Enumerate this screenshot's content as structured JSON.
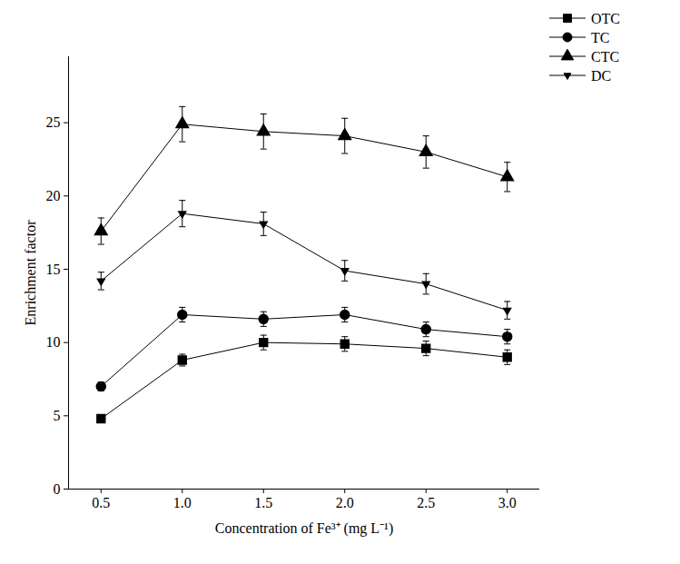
{
  "chart_data": {
    "type": "line",
    "x_label": "Concentration of Fe³⁺ (mg L⁻¹)",
    "y_label": "Enrichment factor",
    "x": [
      0.5,
      1.0,
      1.5,
      2.0,
      2.5,
      3.0
    ],
    "series": [
      {
        "name": "OTC",
        "color": "#000000",
        "marker": "square",
        "line_style": "solid",
        "values": [
          4.8,
          8.8,
          10.0,
          9.9,
          9.6,
          9.0
        ],
        "errors": [
          0.2,
          0.4,
          0.5,
          0.5,
          0.5,
          0.5
        ]
      },
      {
        "name": "TC",
        "color": "#000000",
        "marker": "circle",
        "line_style": "solid",
        "values": [
          7.0,
          11.9,
          11.6,
          11.9,
          10.9,
          10.4
        ],
        "errors": [
          0.3,
          0.5,
          0.5,
          0.5,
          0.5,
          0.5
        ]
      },
      {
        "name": "CTC",
        "color": "#000000",
        "marker": "triangle",
        "line_style": "solid",
        "values": [
          17.6,
          24.9,
          24.4,
          24.1,
          23.0,
          21.3
        ],
        "errors": [
          0.9,
          1.2,
          1.2,
          1.2,
          1.1,
          1.0
        ]
      },
      {
        "name": "DC",
        "color": "#000000",
        "marker": "triangle-down",
        "line_style": "solid",
        "values": [
          14.2,
          18.8,
          18.1,
          14.9,
          14.0,
          12.2
        ],
        "errors": [
          0.6,
          0.9,
          0.8,
          0.7,
          0.7,
          0.6
        ]
      }
    ],
    "xlim": [
      0.3,
      3.2
    ],
    "xticks": [
      0.5,
      {
        "value": 1.0,
        "label": "1.0"
      },
      1.5,
      {
        "value": 2.0,
        "label": "2.0"
      },
      2.5,
      {
        "value": 3.0,
        "label": "3.0"
      }
    ],
    "ylim": [
      0,
      29.5
    ],
    "yticks": [
      0,
      5,
      10,
      15,
      20,
      25
    ],
    "grid": false,
    "legend": "top-right"
  }
}
